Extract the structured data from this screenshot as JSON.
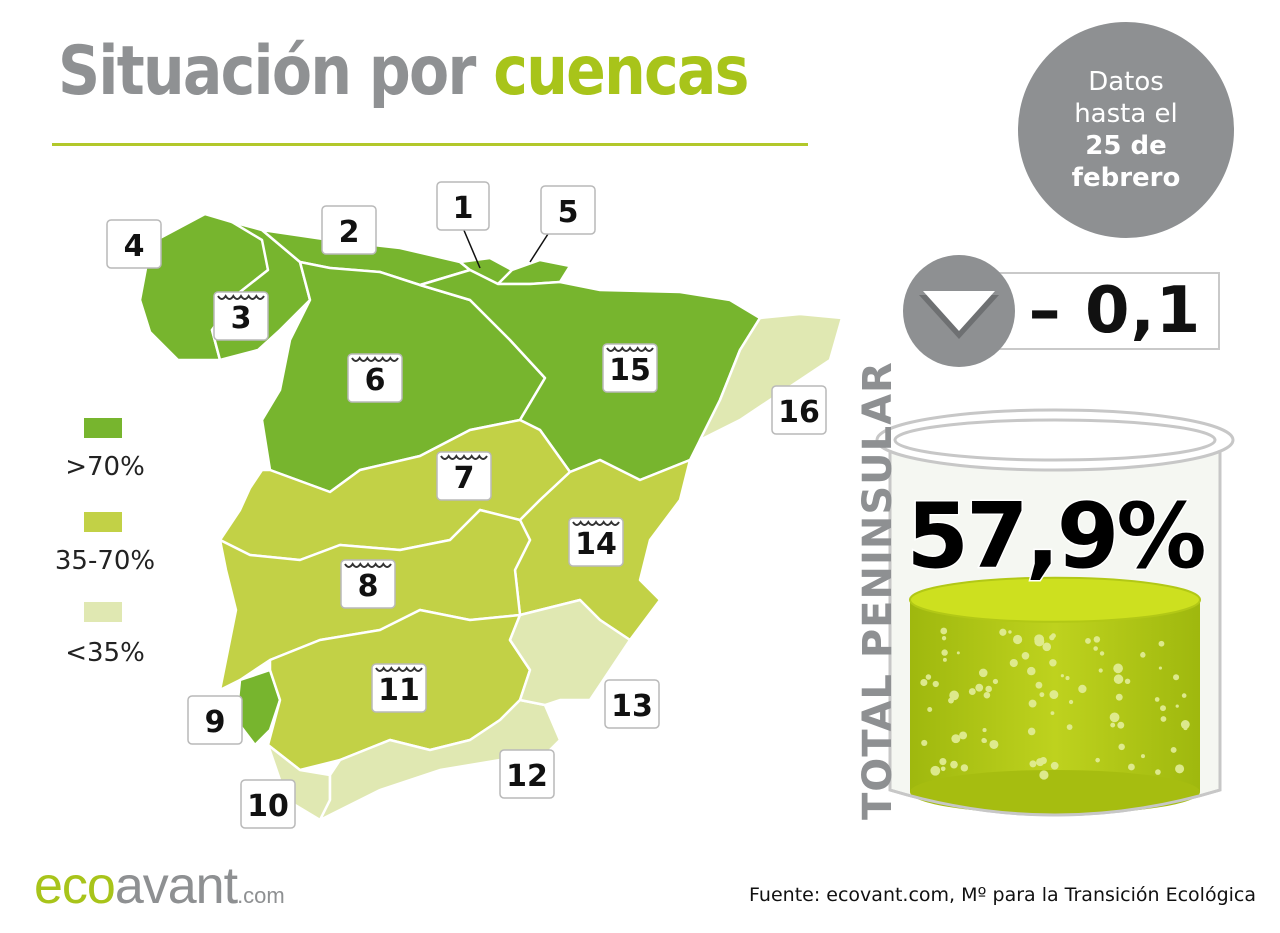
{
  "title": {
    "part1": "Situación por",
    "part2": "cuencas"
  },
  "date_badge": {
    "line1": "Datos",
    "line2": "hasta el",
    "line3": "25 de",
    "line4": "febrero"
  },
  "change": {
    "value": "– 0,1",
    "direction": "down",
    "icon": "down-arrow-icon"
  },
  "total": {
    "label": "TOTAL PENINSULAR",
    "value": "57,9%",
    "fill_fraction": 0.579
  },
  "legend": [
    {
      "label": ">70%",
      "color": "#77b52e"
    },
    {
      "label": "35-70%",
      "color": "#c2d146"
    },
    {
      "label": "<35%",
      "color": "#e0e8b2"
    }
  ],
  "basins": [
    {
      "number": "1",
      "level": "high"
    },
    {
      "number": "2",
      "level": "high"
    },
    {
      "number": "3",
      "level": "high"
    },
    {
      "number": "4",
      "level": "high"
    },
    {
      "number": "5",
      "level": "high"
    },
    {
      "number": "6",
      "level": "high"
    },
    {
      "number": "7",
      "level": "mid"
    },
    {
      "number": "8",
      "level": "mid"
    },
    {
      "number": "9",
      "level": "high"
    },
    {
      "number": "10",
      "level": "low"
    },
    {
      "number": "11",
      "level": "mid"
    },
    {
      "number": "12",
      "level": "low"
    },
    {
      "number": "13",
      "level": "low"
    },
    {
      "number": "14",
      "level": "mid"
    },
    {
      "number": "15",
      "level": "high"
    },
    {
      "number": "16",
      "level": "low"
    }
  ],
  "logo": {
    "eco": "eco",
    "avant": "avant",
    "com": ".com"
  },
  "source": "Fuente: ecovant.com, Mº para la Transición Ecológica"
}
